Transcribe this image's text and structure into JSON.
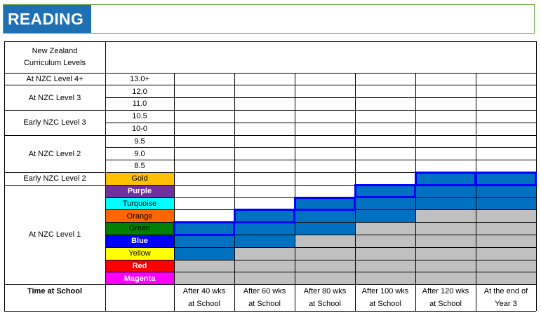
{
  "title": "READING",
  "header_levels": "New Zealand\nCurriculum Levels",
  "levels": [
    "At NZC Level 4+",
    "At NZC Level 3",
    "Early NZC Level 3",
    "At NZC Level 2",
    "Early NZC Level 2",
    "At NZC Level 1"
  ],
  "level_row_spans": [
    [
      0,
      1
    ],
    [
      1,
      2
    ],
    [
      3,
      2
    ],
    [
      5,
      3
    ],
    [
      8,
      1
    ],
    [
      9,
      8
    ]
  ],
  "reading_ages": [
    "13.0+",
    "12.0",
    "11.0",
    "10.5",
    "10-0",
    "9.5",
    "9.0",
    "8.5"
  ],
  "colour_bands": [
    {
      "label": "Gold",
      "bg": "#ffc000",
      "fg": "#000000",
      "bold": false
    },
    {
      "label": "Purple",
      "bg": "#7030a0",
      "fg": "#ffffff",
      "bold": true
    },
    {
      "label": "Turquoise",
      "bg": "#00ffff",
      "fg": "#000000",
      "bold": false
    },
    {
      "label": "Orange",
      "bg": "#ff6600",
      "fg": "#000000",
      "bold": false
    },
    {
      "label": "Green",
      "bg": "#008000",
      "fg": "#000000",
      "bold": false
    },
    {
      "label": "Blue",
      "bg": "#0000ff",
      "fg": "#ffffff",
      "bold": true
    },
    {
      "label": "Yellow",
      "bg": "#ffff00",
      "fg": "#000000",
      "bold": false
    },
    {
      "label": "Red",
      "bg": "#ff0000",
      "fg": "#ffffff",
      "bold": true
    },
    {
      "label": "Magenta",
      "bg": "#ff00ff",
      "fg": "#ffffff",
      "bold": true
    }
  ],
  "time_label": "Time at School",
  "milestones": [
    {
      "line1": "After 40 wks",
      "line2": "at School",
      "expected_row": 12,
      "blue_from": 12,
      "blue_to": 14
    },
    {
      "line1": "After 60 wks",
      "line2": "at School",
      "expected_row": 11,
      "blue_from": 11,
      "blue_to": 13
    },
    {
      "line1": "After 80 wks",
      "line2": "at School",
      "expected_row": 10,
      "blue_from": 10,
      "blue_to": 12
    },
    {
      "line1": "After 100 wks",
      "line2": "at School",
      "expected_row": 9,
      "blue_from": 9,
      "blue_to": 11
    },
    {
      "line1": "After 120 wks",
      "line2": "at School",
      "expected_row": 8,
      "blue_from": 8,
      "blue_to": 10
    },
    {
      "line1": "At the end of",
      "line2": "Year 3",
      "expected_row": 8,
      "blue_from": 8,
      "blue_to": 10
    }
  ],
  "colors": {
    "title_bg": "#1f6fb5",
    "header_border": "#70ad47",
    "expected_outline": "#0000ff",
    "achieved_fill": "#0070c0",
    "below_fill": "#c0c0c0"
  }
}
